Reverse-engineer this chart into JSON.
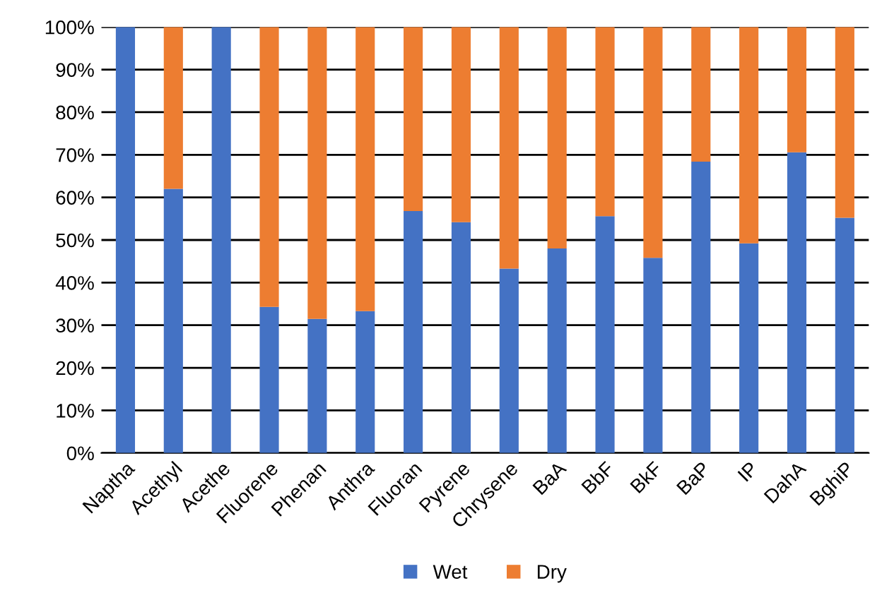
{
  "chart_data": {
    "type": "bar",
    "stacked": true,
    "categories": [
      "Naptha",
      "Acethyl",
      "Acethe",
      "Fluorene",
      "Phenan",
      "Anthra",
      "Fluoran",
      "Pyrene",
      "Chrysene",
      "BaA",
      "BbF",
      "BkF",
      "BaP",
      "IP",
      "DahA",
      "BghiP"
    ],
    "series": [
      {
        "name": "Wet",
        "color": "#4472c4",
        "values": [
          100,
          62,
          100,
          34.3,
          31.5,
          33.3,
          56.8,
          54.2,
          43.3,
          48,
          55.6,
          45.8,
          68.4,
          49.2,
          70.6,
          55.2
        ]
      },
      {
        "name": "Dry",
        "color": "#ed7d31",
        "values": [
          0,
          38,
          0,
          65.7,
          68.5,
          66.7,
          43.2,
          45.8,
          56.7,
          52,
          44.4,
          54.2,
          31.6,
          50.8,
          29.4,
          44.8
        ]
      }
    ],
    "ylim": [
      0,
      100
    ],
    "yticks": [
      {
        "value": 0,
        "label": "0%"
      },
      {
        "value": 10,
        "label": "10%"
      },
      {
        "value": 20,
        "label": "20%"
      },
      {
        "value": 30,
        "label": "30%"
      },
      {
        "value": 40,
        "label": "40%"
      },
      {
        "value": 50,
        "label": "50%"
      },
      {
        "value": 60,
        "label": "60%"
      },
      {
        "value": 70,
        "label": "70%"
      },
      {
        "value": 80,
        "label": "80%"
      },
      {
        "value": 90,
        "label": "90%"
      },
      {
        "value": 100,
        "label": "100%"
      }
    ],
    "grid": "y",
    "legend": "bottom"
  }
}
